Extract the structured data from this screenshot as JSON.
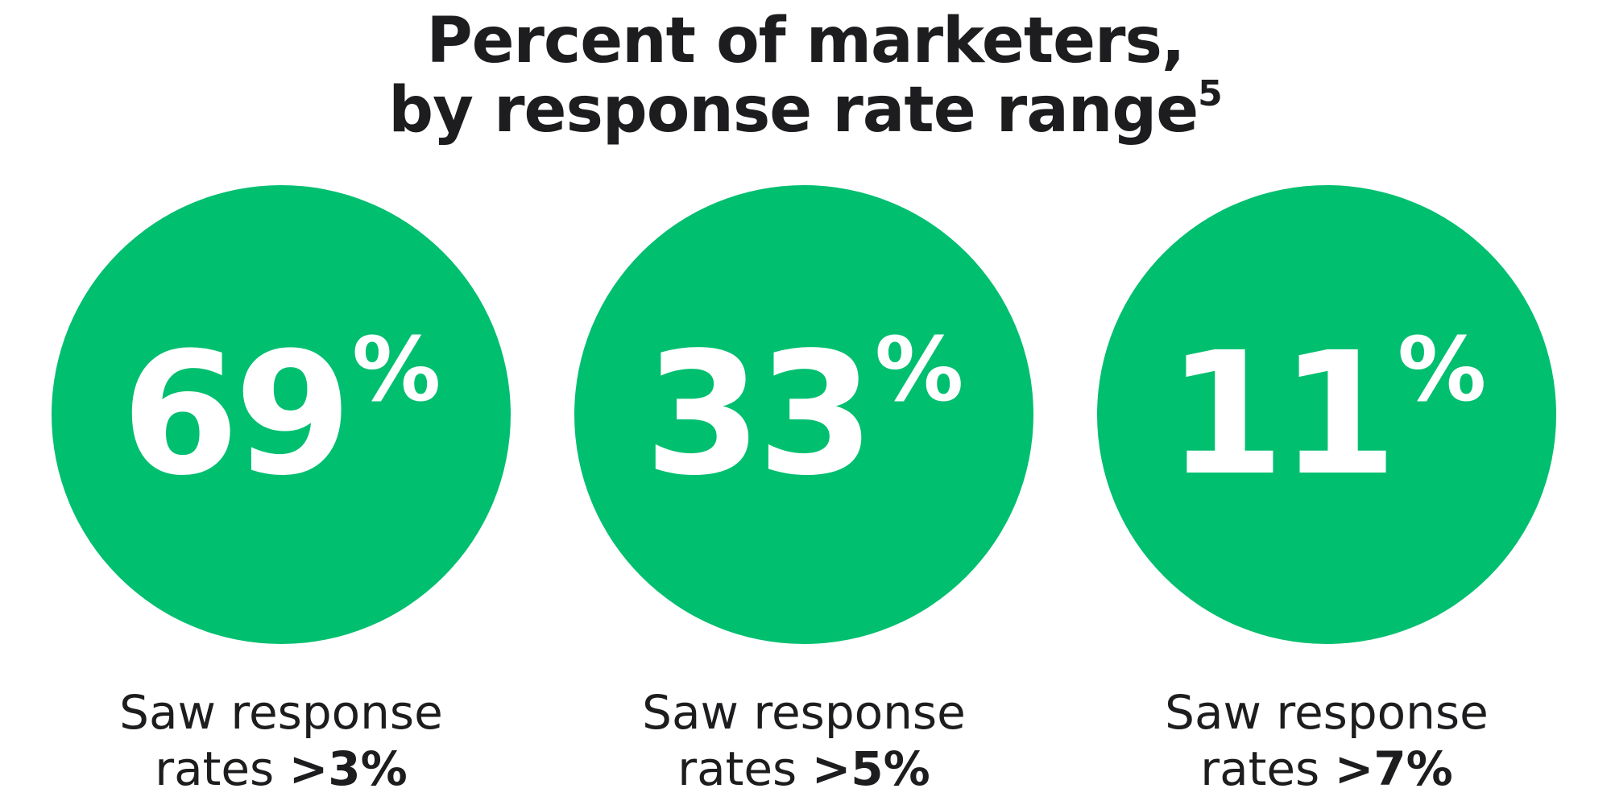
{
  "title": {
    "line1": "Percent of marketers,",
    "line2": "by response rate range",
    "footnote": "5"
  },
  "colors": {
    "circle": "#00bf6f",
    "text": "#1d1d1f",
    "value_text": "#ffffff"
  },
  "stats": [
    {
      "value": "69",
      "unit": "%",
      "caption_line1": "Saw response",
      "caption_prefix": "rates ",
      "caption_bold": ">3%"
    },
    {
      "value": "33",
      "unit": "%",
      "caption_line1": "Saw response",
      "caption_prefix": "rates ",
      "caption_bold": ">5%"
    },
    {
      "value": "11",
      "unit": "%",
      "caption_line1": "Saw response",
      "caption_prefix": "rates ",
      "caption_bold": ">7%"
    }
  ],
  "chart_data": {
    "type": "bar",
    "title": "Percent of marketers, by response rate range",
    "categories": [
      ">3%",
      ">5%",
      ">7%"
    ],
    "values": [
      69,
      33,
      11
    ],
    "unit": "%"
  }
}
